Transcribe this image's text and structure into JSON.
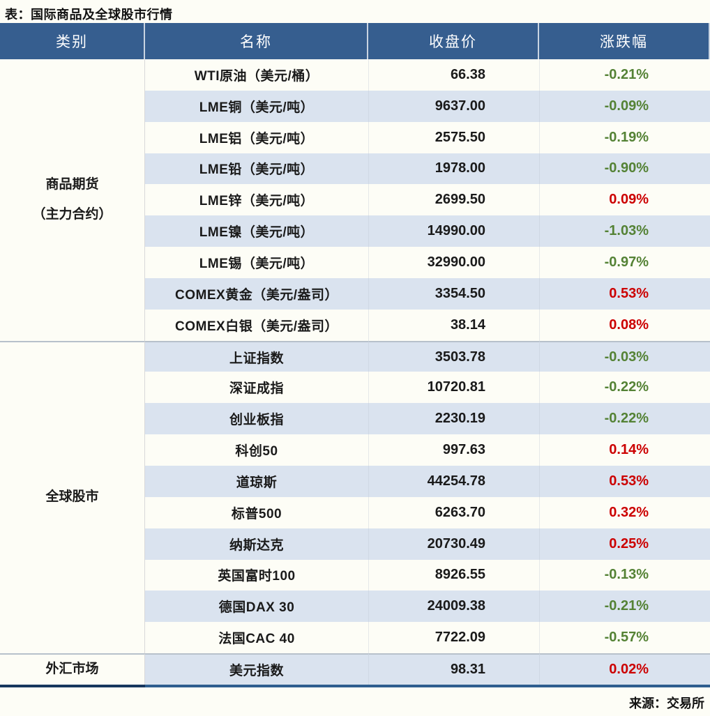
{
  "title": "表：国际商品及全球股市行情",
  "source": "来源：交易所",
  "colors": {
    "header_bg": "#365E8F",
    "header_text": "#FFFFFF",
    "row_alt": "#DAE3EF",
    "up_red": "#CC0000",
    "down_green": "#548235"
  },
  "table": {
    "headers": [
      "类别",
      "名称",
      "收盘价",
      "涨跌幅"
    ],
    "sections": [
      {
        "category": "商品期货\n（主力合约）",
        "rows": [
          {
            "name": "WTI原油（美元/桶）",
            "close": "66.38",
            "change": "-0.21%"
          },
          {
            "name": "LME铜（美元/吨）",
            "close": "9637.00",
            "change": "-0.09%"
          },
          {
            "name": "LME铝（美元/吨）",
            "close": "2575.50",
            "change": "-0.19%"
          },
          {
            "name": "LME铅（美元/吨）",
            "close": "1978.00",
            "change": "-0.90%"
          },
          {
            "name": "LME锌（美元/吨）",
            "close": "2699.50",
            "change": "0.09%"
          },
          {
            "name": "LME镍（美元/吨）",
            "close": "14990.00",
            "change": "-1.03%"
          },
          {
            "name": "LME锡（美元/吨）",
            "close": "32990.00",
            "change": "-0.97%"
          },
          {
            "name": "COMEX黄金（美元/盎司）",
            "close": "3354.50",
            "change": "0.53%"
          },
          {
            "name": "COMEX白银（美元/盎司）",
            "close": "38.14",
            "change": "0.08%"
          }
        ]
      },
      {
        "category": "全球股市",
        "rows": [
          {
            "name": "上证指数",
            "close": "3503.78",
            "change": "-0.03%"
          },
          {
            "name": "深证成指",
            "close": "10720.81",
            "change": "-0.22%"
          },
          {
            "name": "创业板指",
            "close": "2230.19",
            "change": "-0.22%"
          },
          {
            "name": "科创50",
            "close": "997.63",
            "change": "0.14%"
          },
          {
            "name": "道琼斯",
            "close": "44254.78",
            "change": "0.53%"
          },
          {
            "name": "标普500",
            "close": "6263.70",
            "change": "0.32%"
          },
          {
            "name": "纳斯达克",
            "close": "20730.49",
            "change": "0.25%"
          },
          {
            "name": "英国富时100",
            "close": "8926.55",
            "change": "-0.13%"
          },
          {
            "name": "德国DAX 30",
            "close": "24009.38",
            "change": "-0.21%"
          },
          {
            "name": "法国CAC 40",
            "close": "7722.09",
            "change": "-0.57%"
          }
        ]
      },
      {
        "category": "外汇市场",
        "rows": [
          {
            "name": "美元指数",
            "close": "98.31",
            "change": "0.02%"
          }
        ]
      }
    ]
  }
}
